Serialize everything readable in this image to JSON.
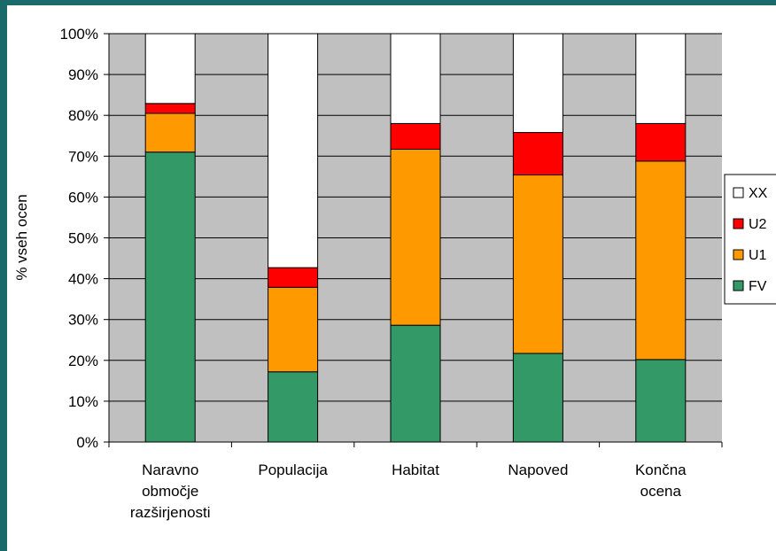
{
  "chart_data": {
    "type": "bar",
    "stacked": true,
    "percent": true,
    "ylabel": "% vseh ocen",
    "ylim": [
      0,
      100
    ],
    "yticks": [
      "0%",
      "10%",
      "20%",
      "30%",
      "40%",
      "50%",
      "60%",
      "70%",
      "80%",
      "90%",
      "100%"
    ],
    "categories": [
      [
        "Naravno",
        "območje",
        "razširjenosti"
      ],
      [
        "Populacija"
      ],
      [
        "Habitat"
      ],
      [
        "Napoved"
      ],
      [
        "Končna",
        "ocena"
      ]
    ],
    "series": [
      {
        "name": "FV",
        "color": "#339966",
        "values": [
          71,
          17.2,
          28.6,
          21.7,
          20.2
        ]
      },
      {
        "name": "U1",
        "color": "#ff9900",
        "values": [
          9.5,
          20.7,
          43.1,
          43.7,
          48.6
        ]
      },
      {
        "name": "U2",
        "color": "#ff0000",
        "values": [
          2.4,
          4.8,
          6.3,
          10.4,
          9.2
        ]
      },
      {
        "name": "XX",
        "color": "#ffffff",
        "values": [
          17.1,
          57.3,
          22.0,
          24.2,
          22.0
        ]
      }
    ],
    "grid": true,
    "plot_background": "#c0c0c0",
    "legend_position": "right",
    "legend_order": [
      "XX",
      "U2",
      "U1",
      "FV"
    ]
  }
}
